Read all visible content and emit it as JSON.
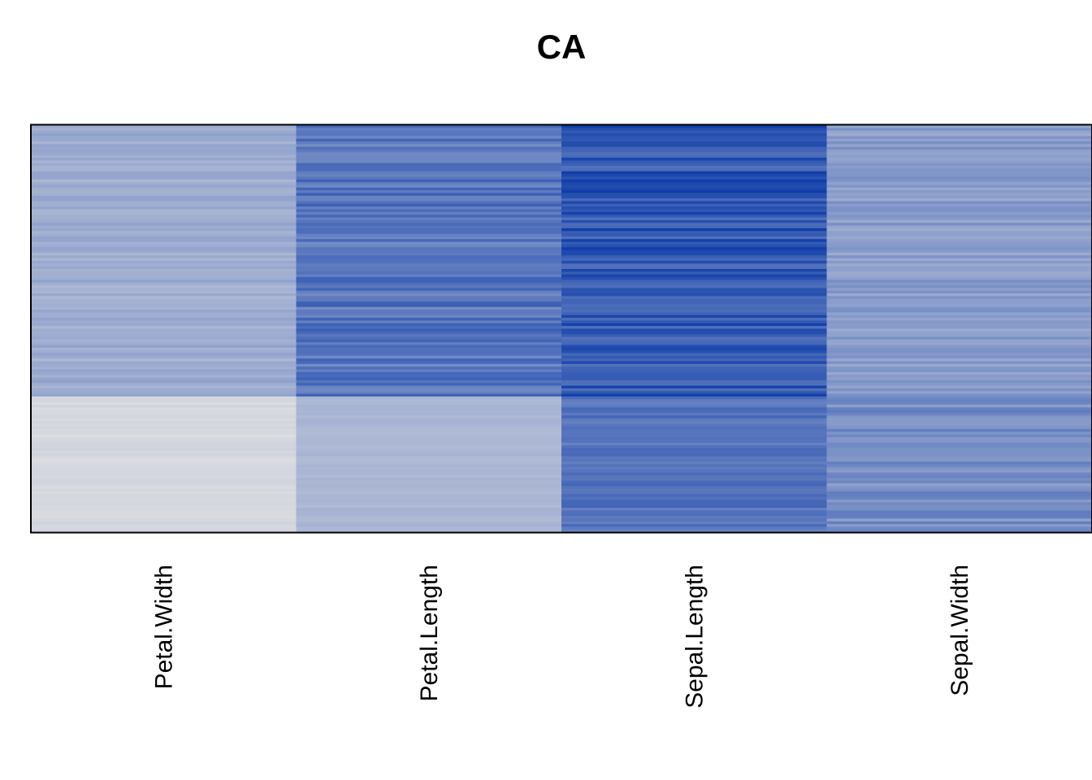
{
  "chart_data": {
    "type": "heatmap",
    "title": "CA",
    "xlabel": "",
    "ylabel": "",
    "columns": [
      "Petal.Width",
      "Petal.Length",
      "Sepal.Length",
      "Sepal.Width"
    ],
    "row_count": 150,
    "colorscale": {
      "low": "#e0e0e2",
      "high": "#0b3aa8"
    },
    "column_value_ranges": [
      {
        "name": "Petal.Width",
        "group_a": [
          0.24,
          0.38
        ],
        "group_b": [
          0.02,
          0.08
        ]
      },
      {
        "name": "Petal.Length",
        "group_a": [
          0.5,
          0.78
        ],
        "group_b": [
          0.22,
          0.28
        ]
      },
      {
        "name": "Sepal.Length",
        "group_a": [
          0.66,
          0.98
        ],
        "group_b": [
          0.56,
          0.74
        ]
      },
      {
        "name": "Sepal.Width",
        "group_a": [
          0.32,
          0.5
        ],
        "group_b": [
          0.38,
          0.6
        ]
      }
    ],
    "group_a_rows": 100,
    "group_b_rows": 50,
    "legend": "none",
    "grid": false
  }
}
